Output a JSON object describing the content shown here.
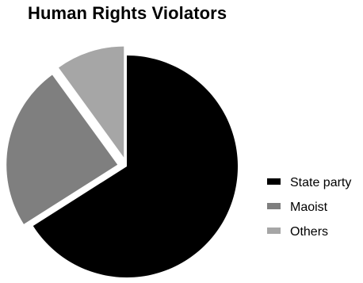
{
  "chart_data": {
    "type": "pie",
    "title": "Human Rights Violators",
    "slices": [
      {
        "label": "State party",
        "value": 66,
        "color": "#000000",
        "exploded": false
      },
      {
        "label": "Maoist",
        "value": 24,
        "color": "#7f7f7f",
        "exploded": true
      },
      {
        "label": "Others",
        "value": 10,
        "color": "#a6a6a6",
        "exploded": true
      }
    ],
    "legend": {
      "position": "right",
      "entries": [
        "State party",
        "Maoist",
        "Others"
      ]
    }
  }
}
